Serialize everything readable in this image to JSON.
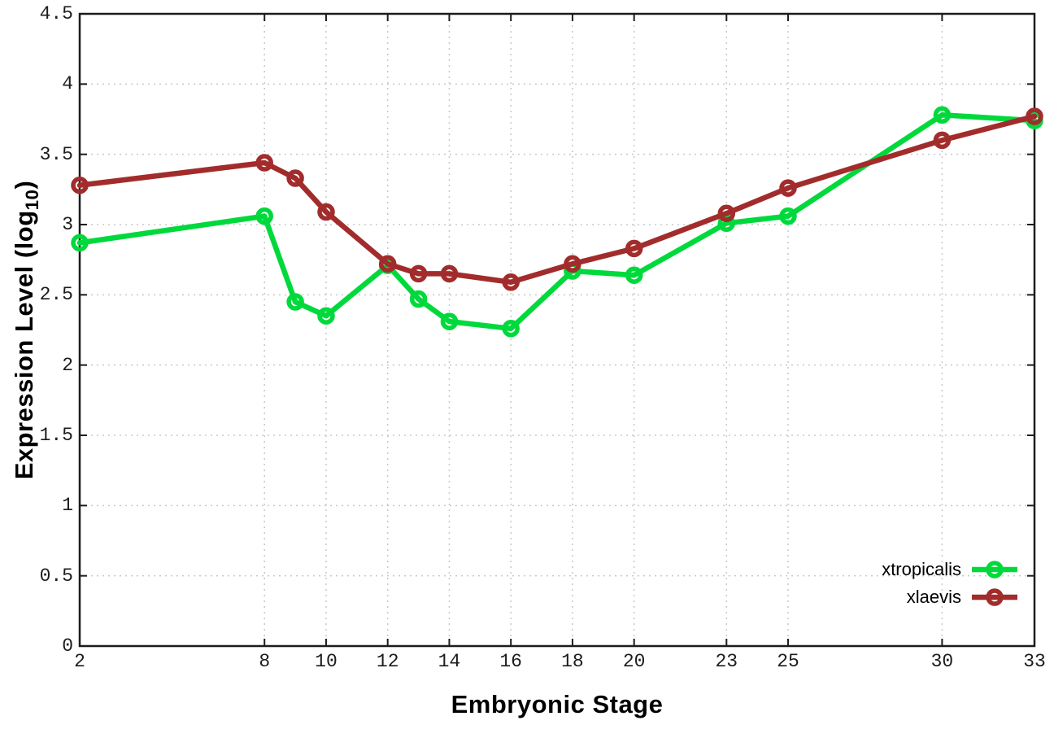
{
  "chart_data": {
    "type": "line",
    "title": "",
    "xlabel": "Embryonic Stage",
    "ylabel": "Expression Level (log10)",
    "ylabel_main": "Expression Level (log",
    "ylabel_sub": "10",
    "ylabel_close": ")",
    "x": [
      2,
      8,
      9,
      10,
      12,
      13,
      14,
      16,
      18,
      20,
      23,
      25,
      30,
      33
    ],
    "series": [
      {
        "name": "xtropicalis",
        "color": "#00d93c",
        "values": [
          2.87,
          3.06,
          2.45,
          2.35,
          2.71,
          2.47,
          2.31,
          2.26,
          2.67,
          2.64,
          3.01,
          3.06,
          3.78,
          3.74
        ]
      },
      {
        "name": "xlaevis",
        "color": "#a22c2c",
        "values": [
          3.28,
          3.44,
          3.33,
          3.09,
          2.72,
          2.65,
          2.65,
          2.59,
          2.72,
          2.83,
          3.08,
          3.26,
          3.6,
          3.77
        ]
      }
    ],
    "xlim": [
      2,
      33
    ],
    "ylim": [
      0,
      4.5
    ],
    "xticks": [
      2,
      8,
      10,
      12,
      14,
      16,
      18,
      20,
      23,
      25,
      30,
      33
    ],
    "xtick_labels": [
      "2",
      "8",
      "10",
      "12",
      "14",
      "16",
      "18",
      "20",
      "23",
      "25",
      "30",
      "33"
    ],
    "yticks": [
      0,
      0.5,
      1,
      1.5,
      2,
      2.5,
      3,
      3.5,
      4,
      4.5
    ],
    "ytick_labels": [
      "0",
      "0.5",
      "1",
      "1.5",
      "2",
      "2.5",
      "3",
      "3.5",
      "4",
      "4.5"
    ],
    "grid": true,
    "legend_position": "inside-bottom-right",
    "marker": "open-circle"
  },
  "colors": {
    "background": "#ffffff",
    "axis": "#1c1c1c",
    "grid": "#c8c8c8",
    "text": "#1c1c1c"
  }
}
